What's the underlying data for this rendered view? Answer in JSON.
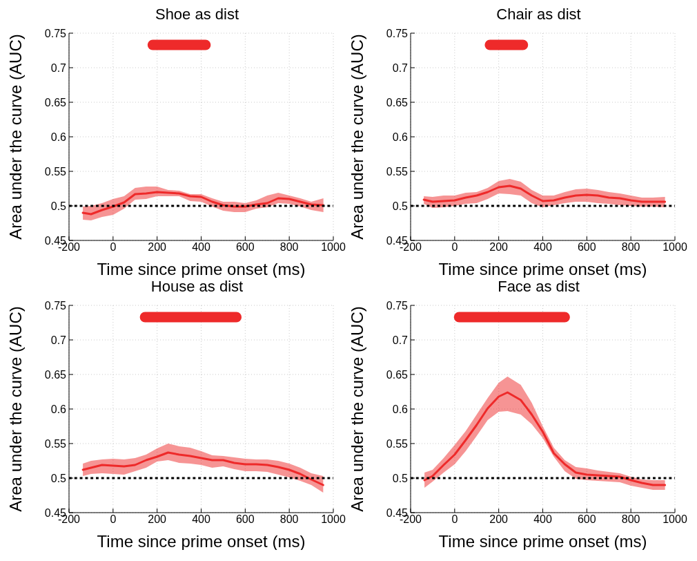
{
  "chart_data": [
    {
      "type": "line",
      "title": "Shoe as dist",
      "xlabel": "Time since prime onset (ms)",
      "ylabel": "Area under the curve (AUC)",
      "xlim": [
        -200,
        1000
      ],
      "xticks": [
        -200,
        0,
        200,
        400,
        600,
        800,
        1000
      ],
      "ylim": [
        0.45,
        0.75
      ],
      "yticks": [
        0.45,
        0.5,
        0.55,
        0.6,
        0.65,
        0.7,
        0.75
      ],
      "grid": true,
      "ref_lines": [
        {
          "axis": "y",
          "value": 0.5,
          "color": "#000000",
          "line_style": "dotted"
        }
      ],
      "series": [
        {
          "color": "#ee2a2a",
          "x": [
            -137,
            -100,
            -50,
            0,
            50,
            100,
            150,
            200,
            250,
            300,
            350,
            400,
            450,
            500,
            550,
            600,
            650,
            700,
            750,
            800,
            850,
            900,
            955
          ],
          "values": [
            0.49,
            0.488,
            0.494,
            0.499,
            0.505,
            0.517,
            0.518,
            0.52,
            0.519,
            0.518,
            0.514,
            0.513,
            0.506,
            0.501,
            0.499,
            0.499,
            0.502,
            0.504,
            0.511,
            0.51,
            0.506,
            0.502,
            0.501
          ],
          "lower": [
            0.48,
            0.479,
            0.484,
            0.487,
            0.496,
            0.509,
            0.51,
            0.514,
            0.514,
            0.514,
            0.507,
            0.506,
            0.499,
            0.493,
            0.491,
            0.491,
            0.496,
            0.498,
            0.504,
            0.503,
            0.499,
            0.494,
            0.491
          ],
          "upper": [
            0.499,
            0.5,
            0.504,
            0.51,
            0.514,
            0.526,
            0.528,
            0.528,
            0.523,
            0.522,
            0.517,
            0.517,
            0.511,
            0.506,
            0.506,
            0.504,
            0.508,
            0.515,
            0.519,
            0.515,
            0.511,
            0.506,
            0.511
          ]
        },
        {
          "color": "#ee2a2a",
          "x": [
            180,
            420
          ],
          "values": [
            0.733,
            0.733
          ]
        }
      ]
    },
    {
      "type": "line",
      "title": "Chair as dist",
      "xlabel": "Time since prime onset (ms)",
      "ylabel": "Area under the curve (AUC)",
      "xlim": [
        -200,
        1000
      ],
      "xticks": [
        -200,
        0,
        200,
        400,
        600,
        800,
        1000
      ],
      "ylim": [
        0.45,
        0.75
      ],
      "yticks": [
        0.45,
        0.5,
        0.55,
        0.6,
        0.65,
        0.7,
        0.75
      ],
      "grid": true,
      "ref_lines": [
        {
          "axis": "y",
          "value": 0.5,
          "color": "#000000",
          "line_style": "dotted"
        }
      ],
      "series": [
        {
          "color": "#ee2a2a",
          "x": [
            -140,
            -100,
            -50,
            0,
            50,
            100,
            150,
            200,
            250,
            300,
            350,
            400,
            450,
            500,
            550,
            600,
            650,
            700,
            750,
            800,
            850,
            900,
            955
          ],
          "values": [
            0.509,
            0.506,
            0.507,
            0.508,
            0.512,
            0.515,
            0.52,
            0.527,
            0.529,
            0.525,
            0.515,
            0.507,
            0.508,
            0.512,
            0.515,
            0.516,
            0.515,
            0.512,
            0.511,
            0.508,
            0.506,
            0.506,
            0.506
          ],
          "lower": [
            0.503,
            0.497,
            0.498,
            0.5,
            0.503,
            0.504,
            0.51,
            0.518,
            0.517,
            0.515,
            0.504,
            0.498,
            0.501,
            0.504,
            0.506,
            0.506,
            0.504,
            0.503,
            0.501,
            0.5,
            0.499,
            0.499,
            0.498
          ],
          "upper": [
            0.514,
            0.513,
            0.515,
            0.515,
            0.519,
            0.52,
            0.526,
            0.536,
            0.539,
            0.535,
            0.523,
            0.515,
            0.515,
            0.52,
            0.524,
            0.525,
            0.523,
            0.52,
            0.518,
            0.515,
            0.512,
            0.512,
            0.513
          ]
        },
        {
          "color": "#ee2a2a",
          "x": [
            160,
            310
          ],
          "values": [
            0.733,
            0.733
          ]
        }
      ]
    },
    {
      "type": "line",
      "title": "House as dist",
      "xlabel": "Time since prime onset (ms)",
      "ylabel": "Area under the curve (AUC)",
      "xlim": [
        -200,
        1000
      ],
      "xticks": [
        -200,
        0,
        200,
        400,
        600,
        800,
        1000
      ],
      "ylim": [
        0.45,
        0.75
      ],
      "yticks": [
        0.45,
        0.5,
        0.55,
        0.6,
        0.65,
        0.7,
        0.75
      ],
      "grid": true,
      "ref_lines": [
        {
          "axis": "y",
          "value": 0.5,
          "color": "#000000",
          "line_style": "dotted"
        }
      ],
      "series": [
        {
          "color": "#ee2a2a",
          "x": [
            -137,
            -100,
            -50,
            0,
            50,
            100,
            150,
            200,
            250,
            300,
            350,
            400,
            450,
            500,
            550,
            600,
            650,
            700,
            750,
            800,
            850,
            900,
            954
          ],
          "values": [
            0.512,
            0.515,
            0.519,
            0.518,
            0.517,
            0.519,
            0.526,
            0.531,
            0.537,
            0.534,
            0.532,
            0.529,
            0.526,
            0.526,
            0.522,
            0.52,
            0.52,
            0.519,
            0.516,
            0.512,
            0.506,
            0.498,
            0.49
          ],
          "lower": [
            0.503,
            0.506,
            0.507,
            0.506,
            0.505,
            0.51,
            0.515,
            0.524,
            0.526,
            0.522,
            0.521,
            0.519,
            0.515,
            0.517,
            0.513,
            0.51,
            0.51,
            0.509,
            0.505,
            0.501,
            0.496,
            0.49,
            0.479
          ],
          "upper": [
            0.521,
            0.525,
            0.527,
            0.528,
            0.527,
            0.529,
            0.534,
            0.543,
            0.55,
            0.546,
            0.544,
            0.539,
            0.533,
            0.532,
            0.53,
            0.528,
            0.527,
            0.527,
            0.525,
            0.521,
            0.515,
            0.507,
            0.503
          ]
        },
        {
          "color": "#ee2a2a",
          "x": [
            145,
            560
          ],
          "values": [
            0.733,
            0.733
          ]
        }
      ]
    },
    {
      "type": "line",
      "title": "Face as dist",
      "xlabel": "Time since prime onset (ms)",
      "ylabel": "Area under the curve (AUC)",
      "xlim": [
        -200,
        1000
      ],
      "xticks": [
        -200,
        0,
        200,
        400,
        600,
        800,
        1000
      ],
      "ylim": [
        0.45,
        0.75
      ],
      "yticks": [
        0.45,
        0.5,
        0.55,
        0.6,
        0.65,
        0.7,
        0.75
      ],
      "grid": true,
      "ref_lines": [
        {
          "axis": "y",
          "value": 0.5,
          "color": "#000000",
          "line_style": "dotted"
        }
      ],
      "series": [
        {
          "color": "#ee2a2a",
          "x": [
            -137,
            -100,
            -50,
            0,
            50,
            100,
            150,
            200,
            240,
            300,
            350,
            400,
            450,
            500,
            550,
            600,
            650,
            700,
            750,
            800,
            850,
            900,
            955
          ],
          "values": [
            0.497,
            0.503,
            0.519,
            0.534,
            0.555,
            0.577,
            0.601,
            0.618,
            0.624,
            0.613,
            0.592,
            0.567,
            0.536,
            0.52,
            0.508,
            0.505,
            0.504,
            0.503,
            0.502,
            0.497,
            0.493,
            0.49,
            0.49
          ],
          "lower": [
            0.486,
            0.495,
            0.508,
            0.52,
            0.539,
            0.561,
            0.584,
            0.596,
            0.597,
            0.592,
            0.578,
            0.558,
            0.531,
            0.51,
            0.499,
            0.497,
            0.496,
            0.495,
            0.494,
            0.489,
            0.486,
            0.483,
            0.483
          ],
          "upper": [
            0.508,
            0.512,
            0.529,
            0.548,
            0.568,
            0.592,
            0.616,
            0.638,
            0.647,
            0.635,
            0.609,
            0.575,
            0.544,
            0.526,
            0.516,
            0.514,
            0.511,
            0.509,
            0.507,
            0.502,
            0.498,
            0.497,
            0.497
          ]
        },
        {
          "color": "#ee2a2a",
          "x": [
            20,
            500
          ],
          "values": [
            0.733,
            0.733
          ]
        }
      ]
    }
  ]
}
